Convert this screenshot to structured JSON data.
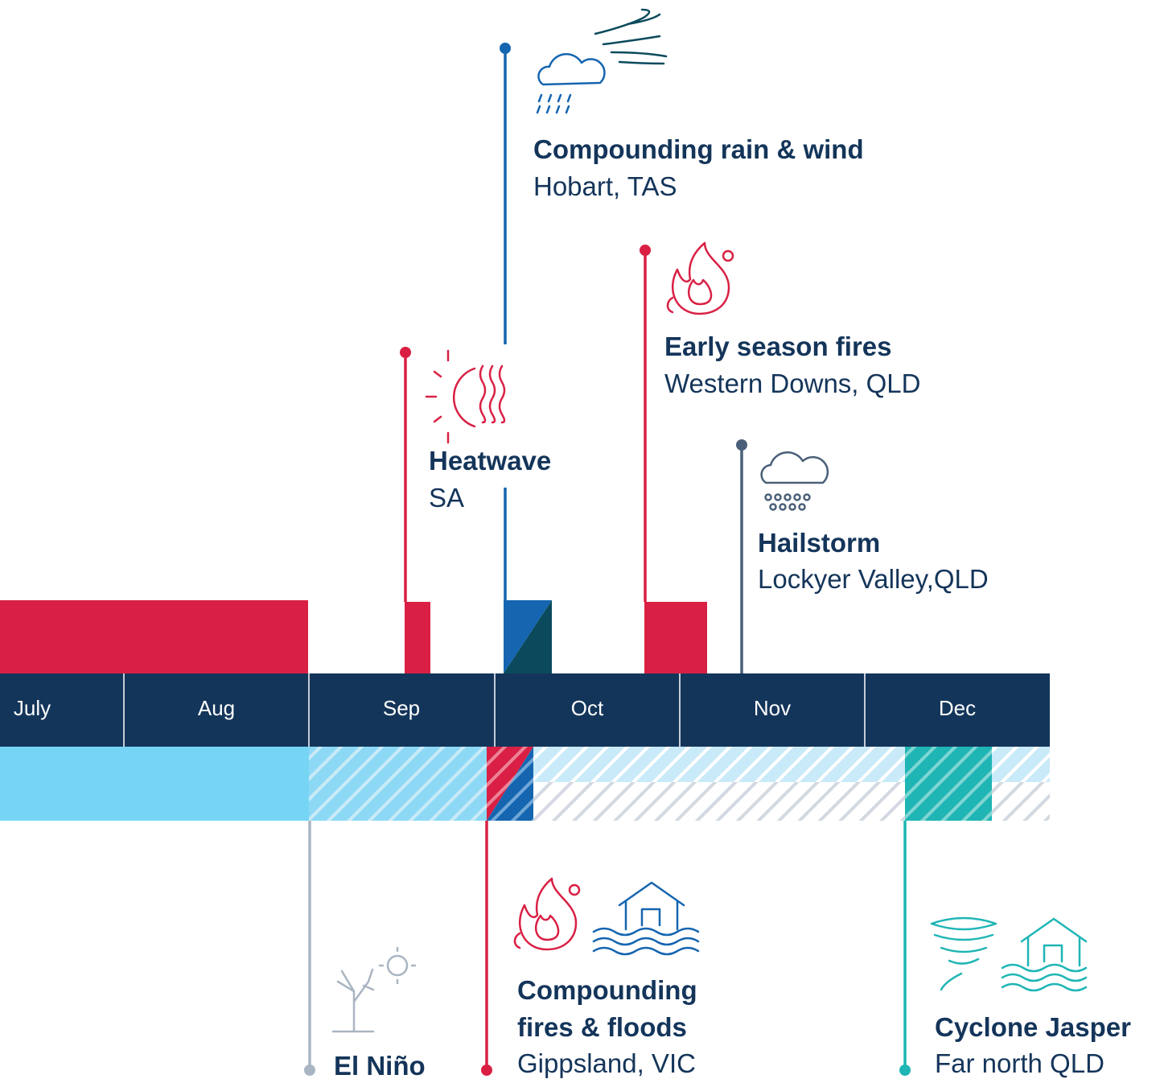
{
  "months": [
    "July",
    "Aug",
    "Sep",
    "Oct",
    "Nov",
    "Dec"
  ],
  "events_above": [
    {
      "title": "Heatwave",
      "location": "SA"
    },
    {
      "title": "Compounding rain & wind",
      "location": "Hobart, TAS"
    },
    {
      "title": "Early season fires",
      "location": "Western Downs, QLD"
    },
    {
      "title": "Hailstorm",
      "location": "Lockyer Valley,QLD"
    }
  ],
  "events_below": [
    {
      "title": "El Niño"
    },
    {
      "title_lines": [
        "Compounding",
        "fires & floods"
      ],
      "location": "Gippsland, VIC"
    },
    {
      "title": "Cyclone Jasper",
      "location": "Far north QLD"
    }
  ]
}
